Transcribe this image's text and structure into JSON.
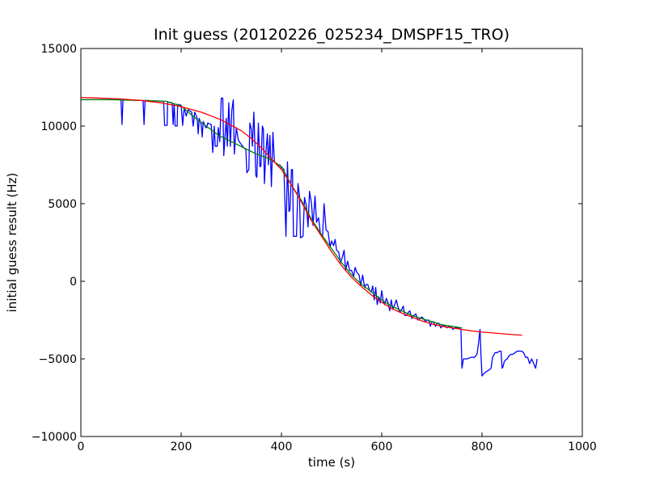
{
  "chart_data": {
    "type": "line",
    "title": "Init guess (20120226_025234_DMSPF15_TRO)",
    "xlabel": "time (s)",
    "ylabel": "initial guess result (Hz)",
    "xlim": [
      0,
      1000
    ],
    "ylim": [
      -10000,
      15000
    ],
    "x_ticks": [
      0,
      200,
      400,
      600,
      800,
      1000
    ],
    "y_ticks": [
      -10000,
      -5000,
      0,
      5000,
      10000,
      15000
    ],
    "x_tick_labels": [
      "0",
      "200",
      "400",
      "600",
      "800",
      "1000"
    ],
    "y_tick_labels": [
      "−10000",
      "−5000",
      "0",
      "5000",
      "10000",
      "15000"
    ],
    "grid": false,
    "legend": "none",
    "series": [
      {
        "color": "#0000ff",
        "points": [
          [
            0,
            11700
          ],
          [
            80,
            11700
          ],
          [
            82,
            10100
          ],
          [
            84,
            11700
          ],
          [
            124,
            11650
          ],
          [
            126,
            10100
          ],
          [
            128,
            11650
          ],
          [
            165,
            11600
          ],
          [
            167,
            10050
          ],
          [
            172,
            10050
          ],
          [
            173,
            11550
          ],
          [
            182,
            11500
          ],
          [
            184,
            10100
          ],
          [
            186,
            11450
          ],
          [
            188,
            10000
          ],
          [
            192,
            10000
          ],
          [
            193,
            11400
          ],
          [
            200,
            11350
          ],
          [
            203,
            10050
          ],
          [
            206,
            11200
          ],
          [
            210,
            10650
          ],
          [
            214,
            11050
          ],
          [
            221,
            10900
          ],
          [
            224,
            10000
          ],
          [
            227,
            10900
          ],
          [
            232,
            10500
          ],
          [
            234,
            9500
          ],
          [
            236,
            10500
          ],
          [
            240,
            10100
          ],
          [
            242,
            9300
          ],
          [
            244,
            10300
          ],
          [
            249,
            9900
          ],
          [
            251,
            9900
          ],
          [
            253,
            10200
          ],
          [
            260,
            10100
          ],
          [
            263,
            8300
          ],
          [
            266,
            10000
          ],
          [
            268,
            8700
          ],
          [
            272,
            8700
          ],
          [
            274,
            9900
          ],
          [
            277,
            9000
          ],
          [
            280,
            11800
          ],
          [
            283,
            11800
          ],
          [
            285,
            8100
          ],
          [
            287,
            9100
          ],
          [
            290,
            10500
          ],
          [
            292,
            8700
          ],
          [
            295,
            11500
          ],
          [
            298,
            8700
          ],
          [
            301,
            11000
          ],
          [
            304,
            11700
          ],
          [
            306,
            8200
          ],
          [
            310,
            9900
          ],
          [
            314,
            9100
          ],
          [
            318,
            8900
          ],
          [
            325,
            8600
          ],
          [
            329,
            8500
          ],
          [
            331,
            7000
          ],
          [
            335,
            7200
          ],
          [
            337,
            10200
          ],
          [
            340,
            9800
          ],
          [
            342,
            8700
          ],
          [
            345,
            10900
          ],
          [
            349,
            6800
          ],
          [
            351,
            6700
          ],
          [
            354,
            10200
          ],
          [
            357,
            7400
          ],
          [
            359,
            7400
          ],
          [
            362,
            10000
          ],
          [
            364,
            9800
          ],
          [
            366,
            6300
          ],
          [
            369,
            8300
          ],
          [
            372,
            9500
          ],
          [
            374,
            7500
          ],
          [
            377,
            9400
          ],
          [
            380,
            6100
          ],
          [
            383,
            9600
          ],
          [
            386,
            7700
          ],
          [
            392,
            7500
          ],
          [
            394,
            7400
          ],
          [
            397,
            7500
          ],
          [
            400,
            7300
          ],
          [
            402,
            7300
          ],
          [
            405,
            7200
          ],
          [
            409,
            2900
          ],
          [
            412,
            7700
          ],
          [
            415,
            4500
          ],
          [
            417,
            4600
          ],
          [
            420,
            7200
          ],
          [
            422,
            7200
          ],
          [
            424,
            2900
          ],
          [
            430,
            2900
          ],
          [
            433,
            6300
          ],
          [
            436,
            5500
          ],
          [
            438,
            2800
          ],
          [
            443,
            2900
          ],
          [
            446,
            5400
          ],
          [
            450,
            4800
          ],
          [
            453,
            3500
          ],
          [
            456,
            5800
          ],
          [
            460,
            5000
          ],
          [
            463,
            3600
          ],
          [
            467,
            5500
          ],
          [
            470,
            3800
          ],
          [
            474,
            4100
          ],
          [
            478,
            3000
          ],
          [
            482,
            2900
          ],
          [
            485,
            5000
          ],
          [
            489,
            3300
          ],
          [
            493,
            3200
          ],
          [
            497,
            2200
          ],
          [
            500,
            2600
          ],
          [
            504,
            2300
          ],
          [
            507,
            2700
          ],
          [
            510,
            2000
          ],
          [
            514,
            1900
          ],
          [
            518,
            1200
          ],
          [
            521,
            1500
          ],
          [
            525,
            2000
          ],
          [
            528,
            700
          ],
          [
            532,
            1300
          ],
          [
            536,
            700
          ],
          [
            540,
            700
          ],
          [
            544,
            300
          ],
          [
            547,
            900
          ],
          [
            550,
            600
          ],
          [
            555,
            400
          ],
          [
            558,
            -300
          ],
          [
            562,
            400
          ],
          [
            566,
            -400
          ],
          [
            569,
            -200
          ],
          [
            572,
            -200
          ],
          [
            576,
            -600
          ],
          [
            579,
            -700
          ],
          [
            582,
            -300
          ],
          [
            585,
            -1200
          ],
          [
            588,
            -400
          ],
          [
            591,
            -1500
          ],
          [
            594,
            -1000
          ],
          [
            597,
            -1400
          ],
          [
            600,
            -600
          ],
          [
            603,
            -1300
          ],
          [
            606,
            -1500
          ],
          [
            609,
            -1100
          ],
          [
            612,
            -1300
          ],
          [
            616,
            -1900
          ],
          [
            619,
            -1200
          ],
          [
            622,
            -1800
          ],
          [
            626,
            -1500
          ],
          [
            629,
            -1200
          ],
          [
            632,
            -1600
          ],
          [
            636,
            -2000
          ],
          [
            640,
            -1800
          ],
          [
            643,
            -1600
          ],
          [
            646,
            -2200
          ],
          [
            650,
            -2200
          ],
          [
            653,
            -2000
          ],
          [
            656,
            -1900
          ],
          [
            660,
            -2400
          ],
          [
            664,
            -2200
          ],
          [
            668,
            -2100
          ],
          [
            672,
            -2500
          ],
          [
            676,
            -2400
          ],
          [
            680,
            -2300
          ],
          [
            683,
            -2400
          ],
          [
            687,
            -2600
          ],
          [
            691,
            -2500
          ],
          [
            694,
            -2500
          ],
          [
            697,
            -2900
          ],
          [
            700,
            -2600
          ],
          [
            703,
            -2600
          ],
          [
            707,
            -2900
          ],
          [
            711,
            -2700
          ],
          [
            714,
            -2700
          ],
          [
            718,
            -3000
          ],
          [
            722,
            -2800
          ],
          [
            726,
            -2900
          ],
          [
            730,
            -3000
          ],
          [
            734,
            -2900
          ],
          [
            738,
            -2900
          ],
          [
            742,
            -3100
          ],
          [
            746,
            -3000
          ],
          [
            750,
            -3000
          ],
          [
            754,
            -3000
          ],
          [
            758,
            -3100
          ],
          [
            760,
            -5600
          ],
          [
            763,
            -5000
          ],
          [
            770,
            -5000
          ],
          [
            778,
            -4900
          ],
          [
            785,
            -4900
          ],
          [
            790,
            -4700
          ],
          [
            793,
            -4000
          ],
          [
            796,
            -3100
          ],
          [
            798,
            -4800
          ],
          [
            800,
            -6100
          ],
          [
            805,
            -5900
          ],
          [
            810,
            -5800
          ],
          [
            815,
            -5700
          ],
          [
            818,
            -5600
          ],
          [
            821,
            -4900
          ],
          [
            826,
            -4600
          ],
          [
            830,
            -4600
          ],
          [
            835,
            -4500
          ],
          [
            838,
            -4500
          ],
          [
            840,
            -5600
          ],
          [
            842,
            -5500
          ],
          [
            844,
            -5200
          ],
          [
            846,
            -5100
          ],
          [
            850,
            -5000
          ],
          [
            854,
            -4800
          ],
          [
            858,
            -4700
          ],
          [
            862,
            -4700
          ],
          [
            866,
            -4600
          ],
          [
            870,
            -4500
          ],
          [
            875,
            -4500
          ],
          [
            879,
            -4500
          ],
          [
            883,
            -4600
          ],
          [
            887,
            -4900
          ],
          [
            891,
            -4900
          ],
          [
            895,
            -5300
          ],
          [
            899,
            -5000
          ],
          [
            903,
            -5300
          ],
          [
            907,
            -5600
          ],
          [
            910,
            -5000
          ]
        ]
      },
      {
        "color": "#008000",
        "points": [
          [
            0,
            11700
          ],
          [
            60,
            11700
          ],
          [
            120,
            11650
          ],
          [
            170,
            11600
          ],
          [
            200,
            11300
          ],
          [
            225,
            10600
          ],
          [
            250,
            10000
          ],
          [
            275,
            9400
          ],
          [
            300,
            9000
          ],
          [
            325,
            8600
          ],
          [
            350,
            8200
          ],
          [
            375,
            7900
          ],
          [
            400,
            7400
          ],
          [
            420,
            6200
          ],
          [
            440,
            5200
          ],
          [
            460,
            4000
          ],
          [
            480,
            3000
          ],
          [
            500,
            2100
          ],
          [
            520,
            1200
          ],
          [
            540,
            400
          ],
          [
            560,
            -200
          ],
          [
            580,
            -700
          ],
          [
            600,
            -1200
          ],
          [
            620,
            -1600
          ],
          [
            640,
            -1900
          ],
          [
            660,
            -2200
          ],
          [
            680,
            -2400
          ],
          [
            700,
            -2600
          ],
          [
            720,
            -2800
          ],
          [
            740,
            -2900
          ],
          [
            760,
            -3000
          ]
        ]
      },
      {
        "color": "#ff0000",
        "points": [
          [
            0,
            11850
          ],
          [
            40,
            11800
          ],
          [
            80,
            11750
          ],
          [
            120,
            11650
          ],
          [
            160,
            11500
          ],
          [
            200,
            11250
          ],
          [
            240,
            10900
          ],
          [
            280,
            10400
          ],
          [
            300,
            10050
          ],
          [
            320,
            9700
          ],
          [
            340,
            9200
          ],
          [
            360,
            8600
          ],
          [
            380,
            7900
          ],
          [
            400,
            7200
          ],
          [
            420,
            6200
          ],
          [
            440,
            5100
          ],
          [
            460,
            3900
          ],
          [
            480,
            2900
          ],
          [
            500,
            1900
          ],
          [
            520,
            1000
          ],
          [
            540,
            250
          ],
          [
            560,
            -350
          ],
          [
            580,
            -900
          ],
          [
            600,
            -1350
          ],
          [
            620,
            -1750
          ],
          [
            640,
            -2050
          ],
          [
            660,
            -2300
          ],
          [
            680,
            -2550
          ],
          [
            700,
            -2750
          ],
          [
            720,
            -2900
          ],
          [
            740,
            -3000
          ],
          [
            760,
            -3100
          ],
          [
            780,
            -3200
          ],
          [
            800,
            -3270
          ],
          [
            820,
            -3320
          ],
          [
            840,
            -3380
          ],
          [
            860,
            -3430
          ],
          [
            880,
            -3470
          ]
        ]
      }
    ]
  }
}
